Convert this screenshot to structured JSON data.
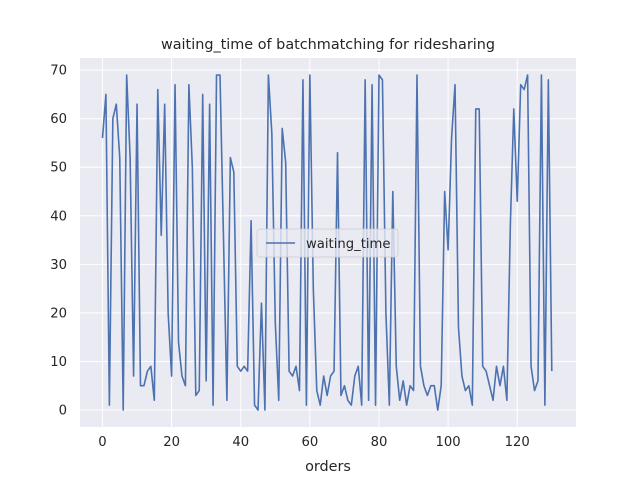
{
  "chart_data": {
    "type": "line",
    "title": "waiting_time of batchmatching for ridesharing",
    "xlabel": "orders",
    "ylabel": "",
    "xlim": [
      -6.5,
      137
    ],
    "ylim": [
      -3.5,
      72.5
    ],
    "x_ticks": [
      0,
      20,
      40,
      60,
      80,
      100,
      120
    ],
    "y_ticks": [
      0,
      10,
      20,
      30,
      40,
      50,
      60,
      70
    ],
    "x_tick_labels": [
      "0",
      "20",
      "40",
      "60",
      "80",
      "100",
      "120"
    ],
    "y_tick_labels": [
      "0",
      "10",
      "20",
      "30",
      "40",
      "50",
      "60",
      "70"
    ],
    "grid": true,
    "legend_position": "center",
    "style": {
      "background": "#eaeaf2",
      "grid_color": "#ffffff",
      "line_color": "#4c72b0"
    },
    "series": [
      {
        "name": "waiting_time",
        "values": [
          56,
          65,
          1,
          60,
          63,
          52,
          0,
          69,
          52,
          7,
          63,
          5,
          5,
          8,
          9,
          2,
          66,
          36,
          63,
          20,
          7,
          67,
          14,
          7,
          5,
          67,
          50,
          3,
          4,
          65,
          6,
          63,
          1,
          69,
          69,
          36,
          2,
          52,
          49,
          9,
          8,
          9,
          8,
          39,
          1,
          0,
          22,
          0,
          69,
          57,
          18,
          2,
          58,
          51,
          8,
          7,
          9,
          4,
          68,
          1,
          69,
          25,
          4,
          1,
          7,
          3,
          7,
          8,
          53,
          3,
          5,
          2,
          1,
          7,
          9,
          1,
          68,
          2,
          67,
          1,
          69,
          68,
          20,
          1,
          45,
          9,
          2,
          6,
          1,
          5,
          4,
          69,
          9,
          5,
          3,
          5,
          5,
          0,
          5,
          45,
          33,
          56,
          67,
          17,
          7,
          4,
          5,
          1,
          62,
          62,
          9,
          8,
          5,
          2,
          9,
          5,
          9,
          2,
          38,
          62,
          43,
          67,
          66,
          69,
          9,
          4,
          6,
          69,
          1,
          68,
          8
        ]
      }
    ]
  }
}
